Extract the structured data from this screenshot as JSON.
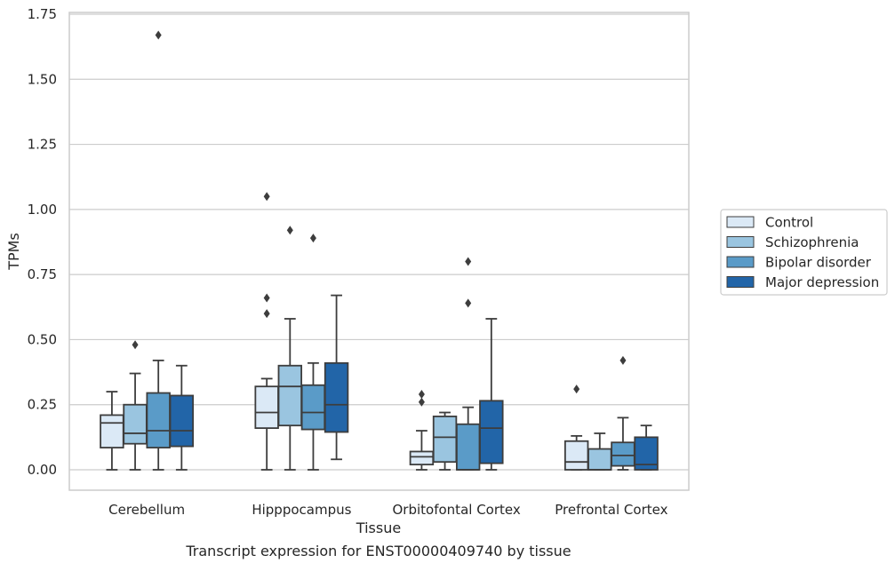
{
  "chart_data": {
    "type": "box",
    "xlabel": "Tissue",
    "ylabel": "TPMs",
    "caption": "Transcript expression for ENST00000409740 by tissue",
    "ylim": [
      -0.08,
      1.76
    ],
    "yticks": [
      0.0,
      0.25,
      0.5,
      0.75,
      1.0,
      1.25,
      1.5,
      1.75
    ],
    "ytick_labels": [
      "0.00",
      "0.25",
      "0.50",
      "0.75",
      "1.00",
      "1.25",
      "1.50",
      "1.75"
    ],
    "grid": "horizontal",
    "legend_position": "outside-right",
    "categories": [
      "Cerebellum",
      "Hipppocampus",
      "Orbitofontal Cortex",
      "Prefrontal Cortex"
    ],
    "series": [
      {
        "name": "Control",
        "color": "#dbe9f6",
        "boxes": [
          {
            "whislo": 0.0,
            "q1": 0.085,
            "med": 0.18,
            "q3": 0.21,
            "whishi": 0.3,
            "fliers": []
          },
          {
            "whislo": 0.0,
            "q1": 0.16,
            "med": 0.22,
            "q3": 0.32,
            "whishi": 0.35,
            "fliers": [
              0.6,
              0.66,
              1.05
            ]
          },
          {
            "whislo": 0.0,
            "q1": 0.02,
            "med": 0.05,
            "q3": 0.07,
            "whishi": 0.15,
            "fliers": [
              0.26,
              0.29
            ]
          },
          {
            "whislo": 0.0,
            "q1": 0.0,
            "med": 0.03,
            "q3": 0.11,
            "whishi": 0.13,
            "fliers": [
              0.31
            ]
          }
        ]
      },
      {
        "name": "Schizophrenia",
        "color": "#9ac5e0",
        "boxes": [
          {
            "whislo": 0.0,
            "q1": 0.1,
            "med": 0.14,
            "q3": 0.25,
            "whishi": 0.37,
            "fliers": [
              0.48
            ]
          },
          {
            "whislo": 0.0,
            "q1": 0.17,
            "med": 0.32,
            "q3": 0.4,
            "whishi": 0.58,
            "fliers": [
              0.92
            ]
          },
          {
            "whislo": 0.0,
            "q1": 0.03,
            "med": 0.125,
            "q3": 0.205,
            "whishi": 0.22,
            "fliers": []
          },
          {
            "whislo": 0.0,
            "q1": 0.0,
            "med": 0.0,
            "q3": 0.08,
            "whishi": 0.14,
            "fliers": []
          }
        ]
      },
      {
        "name": "Bipolar disorder",
        "color": "#5a9bc8",
        "boxes": [
          {
            "whislo": 0.0,
            "q1": 0.085,
            "med": 0.15,
            "q3": 0.295,
            "whishi": 0.42,
            "fliers": [
              1.67
            ]
          },
          {
            "whislo": 0.0,
            "q1": 0.155,
            "med": 0.22,
            "q3": 0.325,
            "whishi": 0.41,
            "fliers": [
              0.89
            ]
          },
          {
            "whislo": 0.0,
            "q1": 0.0,
            "med": 0.0,
            "q3": 0.175,
            "whishi": 0.24,
            "fliers": [
              0.64,
              0.8
            ]
          },
          {
            "whislo": 0.0,
            "q1": 0.015,
            "med": 0.055,
            "q3": 0.105,
            "whishi": 0.2,
            "fliers": [
              0.42
            ]
          }
        ]
      },
      {
        "name": "Major depression",
        "color": "#2265a8",
        "boxes": [
          {
            "whislo": 0.0,
            "q1": 0.09,
            "med": 0.15,
            "q3": 0.285,
            "whishi": 0.4,
            "fliers": []
          },
          {
            "whislo": 0.04,
            "q1": 0.145,
            "med": 0.25,
            "q3": 0.41,
            "whishi": 0.67,
            "fliers": []
          },
          {
            "whislo": 0.0,
            "q1": 0.025,
            "med": 0.16,
            "q3": 0.265,
            "whishi": 0.58,
            "fliers": []
          },
          {
            "whislo": 0.0,
            "q1": 0.0,
            "med": 0.02,
            "q3": 0.125,
            "whishi": 0.17,
            "fliers": []
          }
        ]
      }
    ]
  }
}
